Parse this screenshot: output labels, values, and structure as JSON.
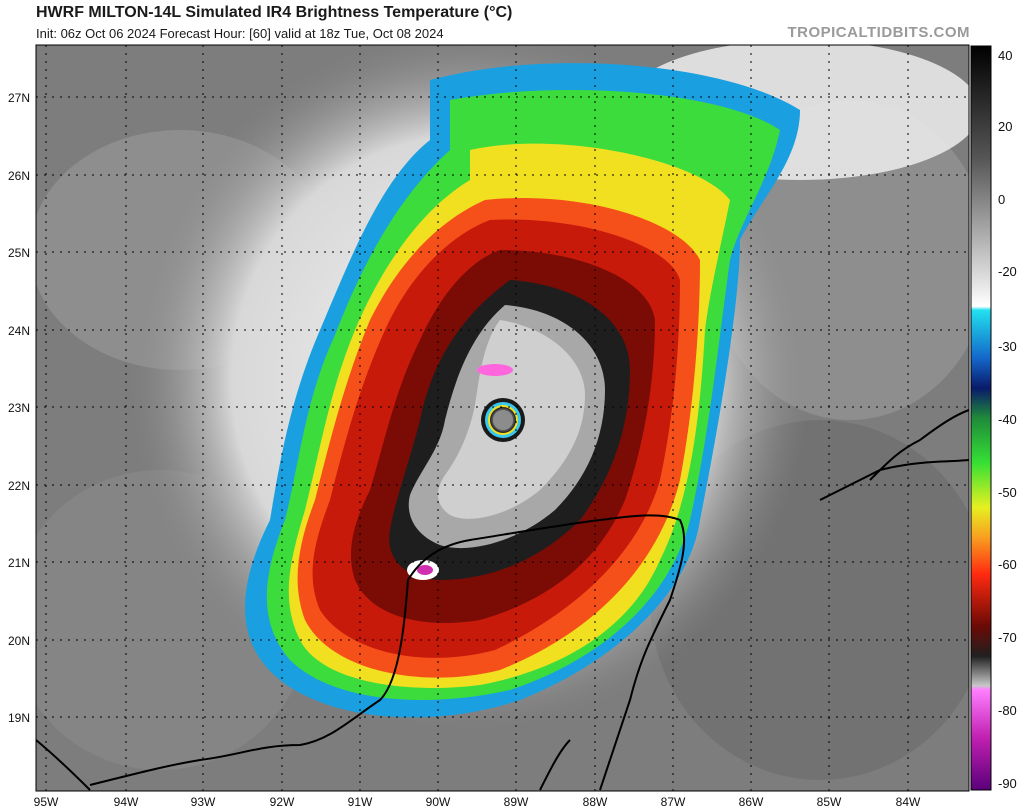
{
  "header": {
    "title": "HWRF MILTON-14L Simulated IR4 Brightness Temperature (°C)",
    "subtitle": "Init: 06z Oct 06 2024   Forecast Hour: [60]   valid at 18z Tue, Oct 08 2024",
    "brand": "TROPICALTIDBITS.COM"
  },
  "map": {
    "lon_range": [
      -95.0,
      -84.0
    ],
    "lat_range": [
      18.3,
      27.6
    ],
    "lon_ticks": [
      "95W",
      "94W",
      "93W",
      "92W",
      "91W",
      "90W",
      "89W",
      "88W",
      "87W",
      "86W",
      "85W",
      "84W"
    ],
    "lat_ticks": [
      "19N",
      "20N",
      "21N",
      "22N",
      "23N",
      "24N",
      "25N",
      "26N",
      "27N"
    ],
    "gridlines": "dotted"
  },
  "colorbar": {
    "labels": [
      "40",
      "20",
      "0",
      "-20",
      "-30",
      "-40",
      "-50",
      "-60",
      "-70",
      "-80",
      "-90"
    ],
    "range": [
      40,
      -90
    ]
  }
}
